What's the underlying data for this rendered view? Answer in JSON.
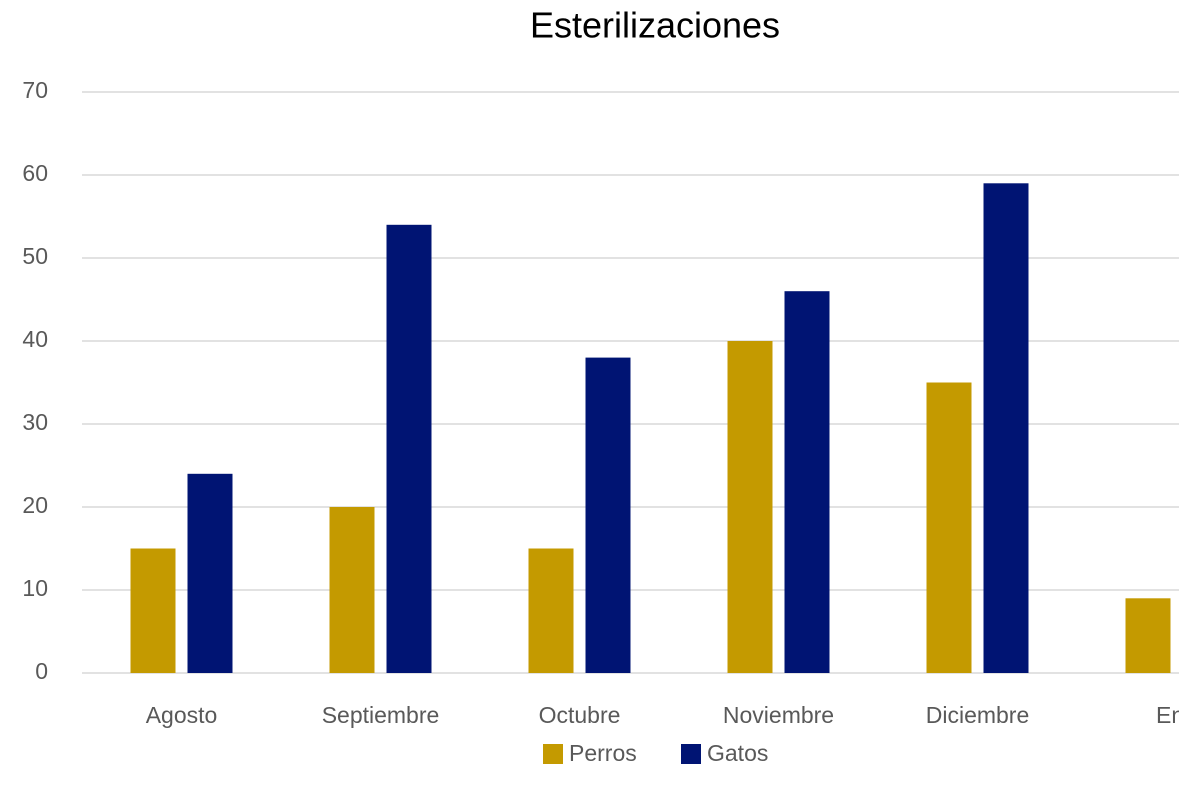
{
  "chart_data": {
    "type": "bar",
    "title": "Esterilizaciones",
    "categories": [
      "Agosto",
      "Septiembre",
      "Octubre",
      "Noviembre",
      "Diciembre",
      "Ene"
    ],
    "series": [
      {
        "name": "Perros",
        "color": "#c49a00",
        "values": [
          15,
          20,
          15,
          40,
          35,
          9
        ]
      },
      {
        "name": "Gatos",
        "color": "#001473",
        "values": [
          24,
          54,
          38,
          46,
          59,
          null
        ]
      }
    ],
    "ylim": [
      0,
      70
    ],
    "yticks": [
      0,
      10,
      20,
      30,
      40,
      50,
      60,
      70
    ],
    "grid": true,
    "legend": "bottom"
  }
}
